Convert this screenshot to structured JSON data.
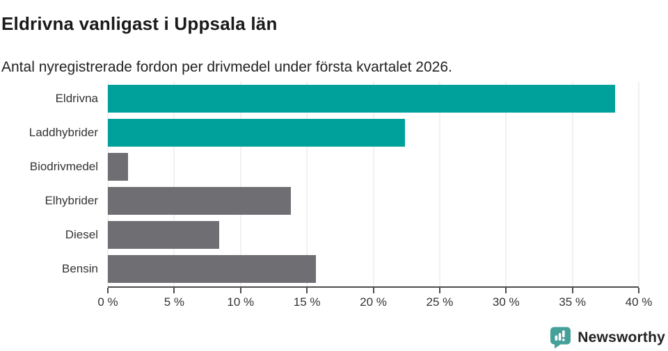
{
  "header": {
    "title": "Eldrivna vanligast i Uppsala län",
    "subtitle": "Antal nyregistrerade fordon per drivmedel under första kvartalet 2026."
  },
  "chart_data": {
    "type": "bar",
    "orientation": "horizontal",
    "title": "Eldrivna vanligast i Uppsala län",
    "subtitle": "Antal nyregistrerade fordon per drivmedel under första kvartalet 2026.",
    "categories": [
      "Eldrivna",
      "Laddhybrider",
      "Biodrivmedel",
      "Elhybrider",
      "Diesel",
      "Bensin"
    ],
    "values": [
      38.2,
      22.4,
      1.5,
      13.8,
      8.4,
      15.7
    ],
    "unit": "%",
    "xlabel": "",
    "ylabel": "",
    "xlim": [
      0,
      40
    ],
    "ticks": [
      0,
      5,
      10,
      15,
      20,
      25,
      30,
      35,
      40
    ],
    "tick_labels": [
      "0 %",
      "5 %",
      "10 %",
      "15 %",
      "20 %",
      "25 %",
      "30 %",
      "35 %",
      "40 %"
    ],
    "bar_colors": [
      "#00a09b",
      "#00a09b",
      "#6e6e73",
      "#6e6e73",
      "#6e6e73",
      "#6e6e73"
    ],
    "highlight_color": "#00a09b",
    "default_color": "#6e6e73",
    "grid": true,
    "gridline_color": "#e3e3e3",
    "axis_color": "#4d4d4d",
    "legend": "none"
  },
  "footer": {
    "brand": "Newsworthy",
    "brand_color": "#3a938f",
    "logo_icon": "newsworthy-speech-bubble-barchart"
  }
}
